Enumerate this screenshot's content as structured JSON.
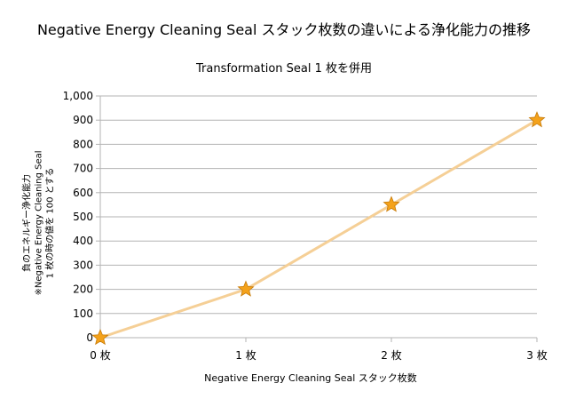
{
  "chart_data": {
    "type": "line",
    "title": "Negative Energy Cleaning Seal スタック枚数の違いによる浄化能力の推移",
    "subtitle": "Transformation Seal 1 枚を併用",
    "xlabel": "Negative Energy Cleaning Seal スタック枚数",
    "ylabel": [
      "負のエネルギー浄化能力",
      "※Negative Energy Cleaning Seal",
      "1 枚の時の値を 100 とする"
    ],
    "categories": [
      "0 枚",
      "1 枚",
      "2 枚",
      "3 枚"
    ],
    "values": [
      0,
      200,
      550,
      900
    ],
    "ylim": [
      0,
      1000
    ],
    "yticks": [
      "0",
      "100",
      "200",
      "300",
      "400",
      "500",
      "600",
      "700",
      "800",
      "900",
      "1,000"
    ],
    "grid": "horizontal",
    "line_color": "#f5cf96",
    "marker": "star",
    "marker_color": "#f4a21b",
    "marker_stroke": "#c77b09",
    "grid_color": "#b3b3b3"
  }
}
